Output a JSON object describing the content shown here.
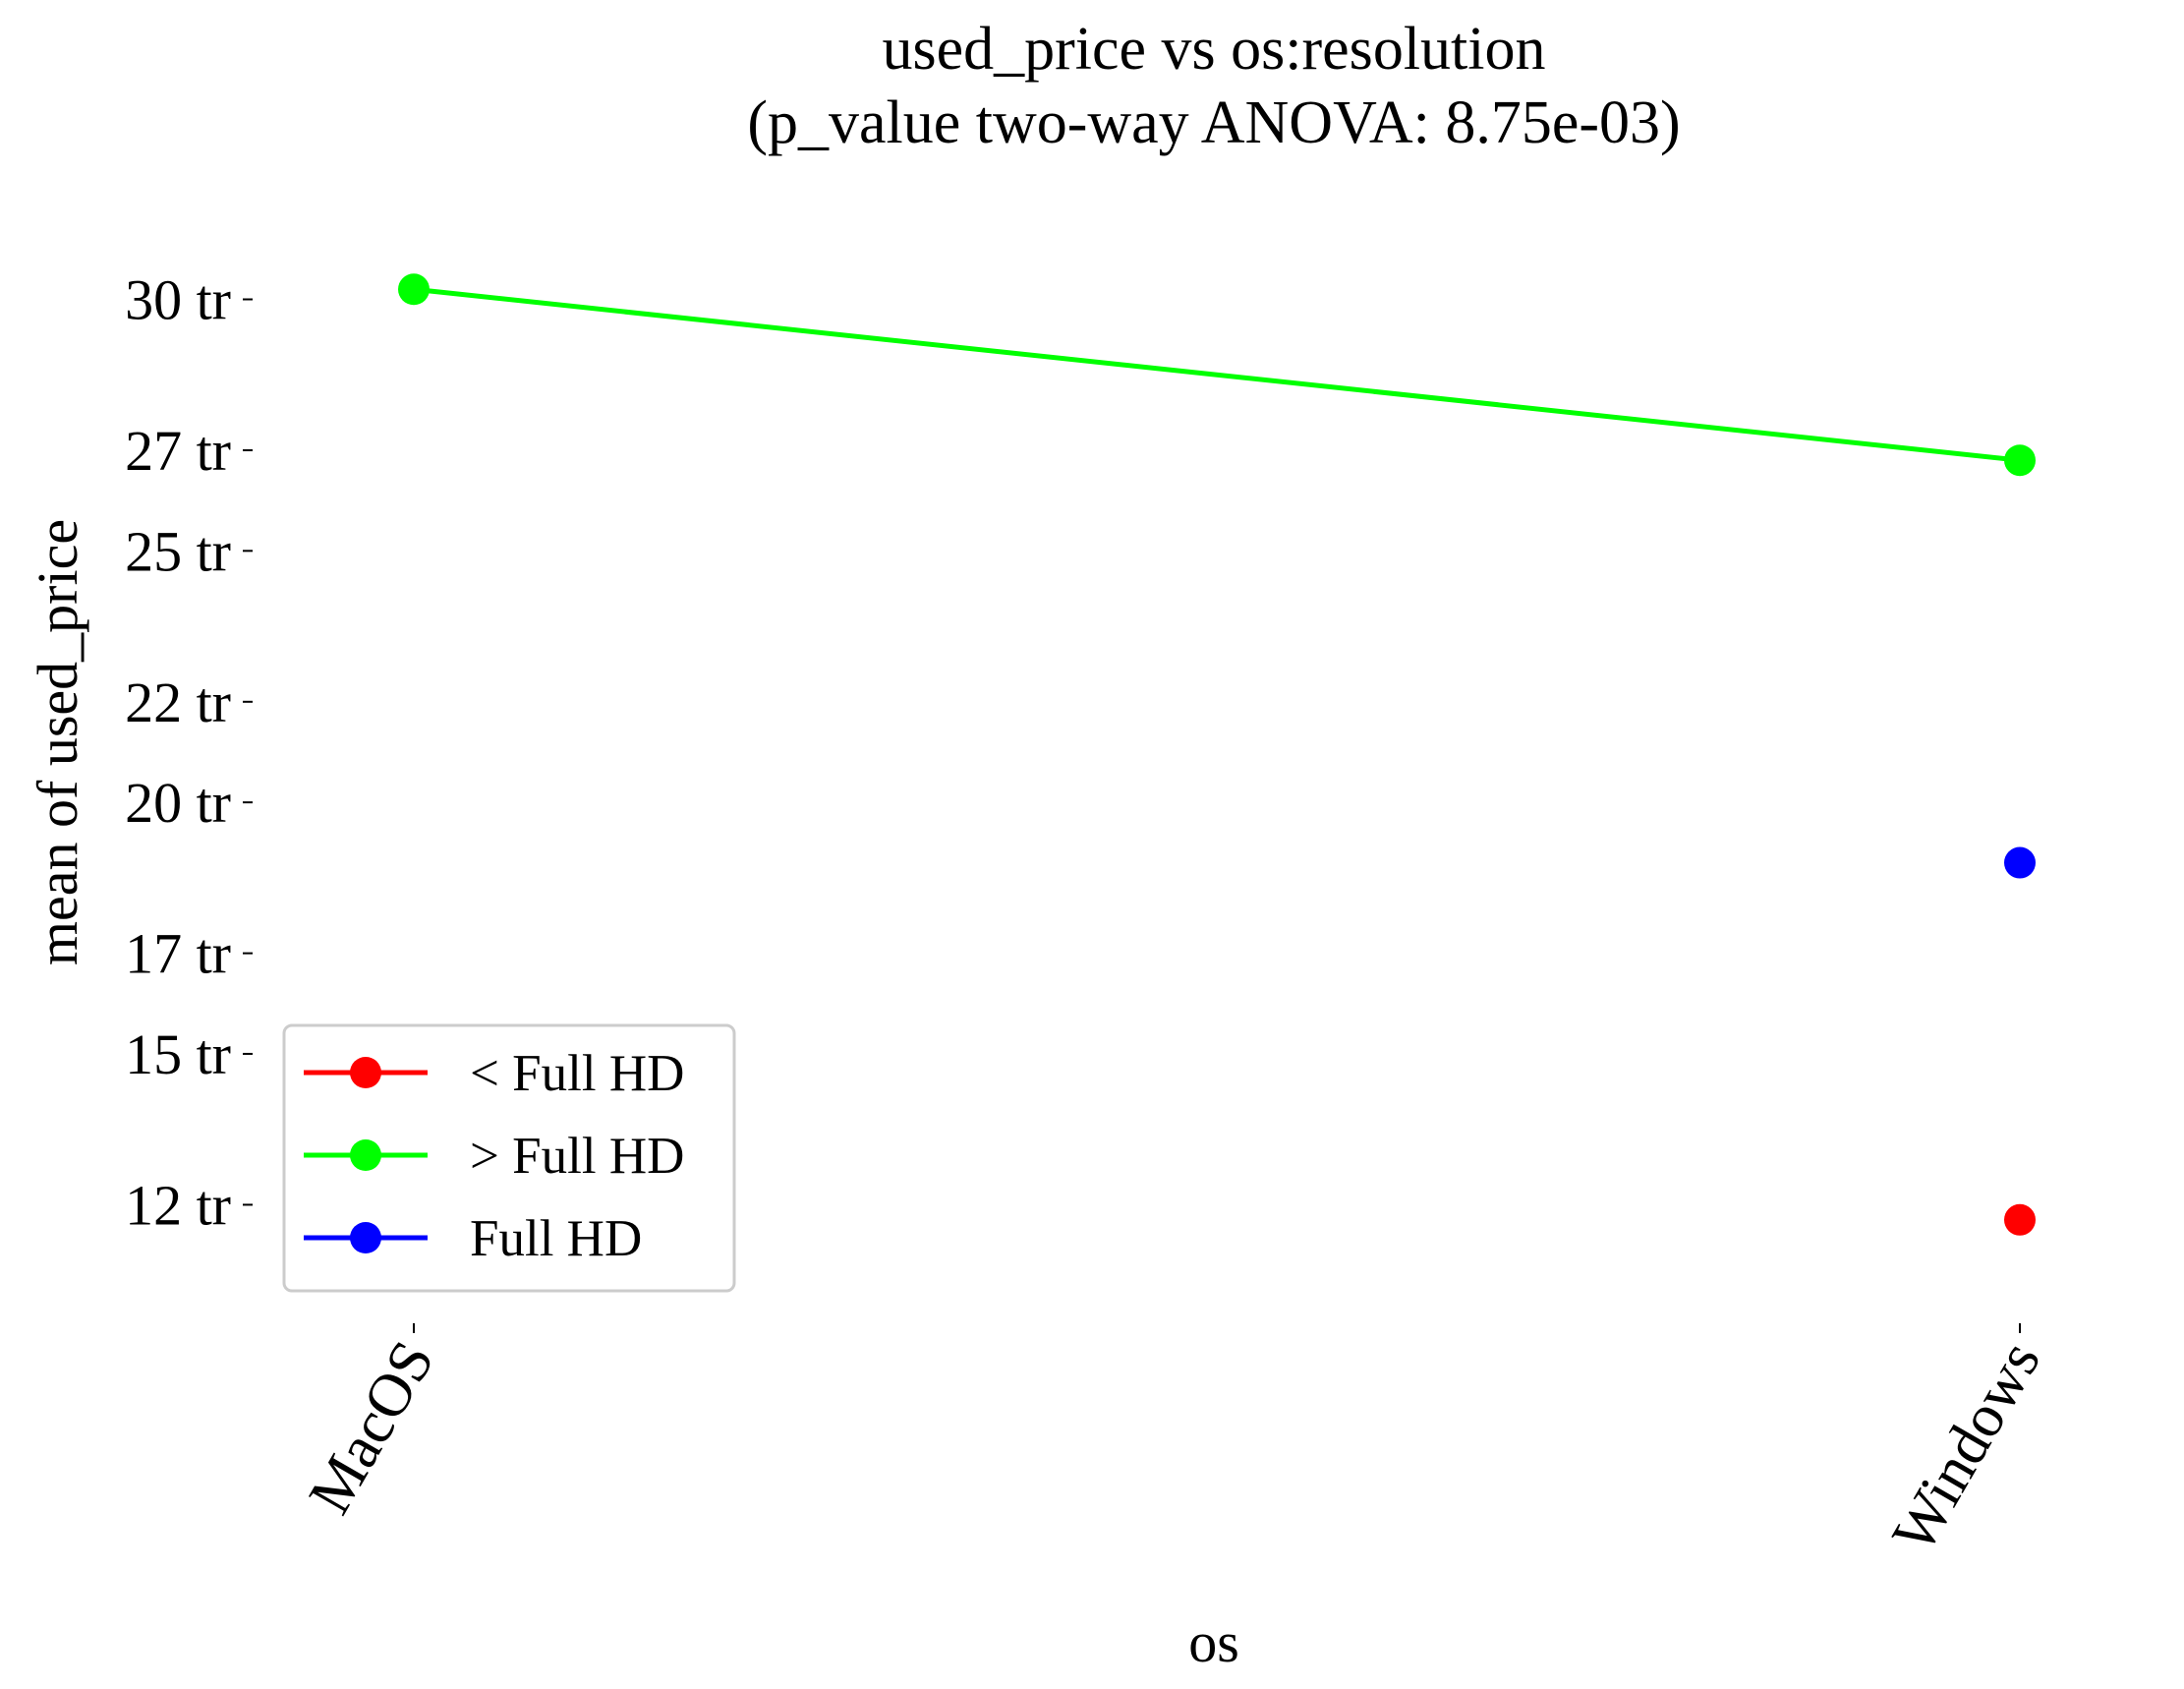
{
  "chart_data": {
    "type": "line",
    "title": "used_price vs os:resolution",
    "subtitle": "(p_value two-way ANOVA: 8.75e-03)",
    "xlabel": "os",
    "ylabel": "mean of used_price",
    "categories": [
      "MacOS",
      "Windows"
    ],
    "y_ticks": [
      {
        "value": 30000000,
        "label": "30 tr"
      },
      {
        "value": 27000000,
        "label": "27 tr"
      },
      {
        "value": 25000000,
        "label": "25 tr"
      },
      {
        "value": 22000000,
        "label": "22 tr"
      },
      {
        "value": 20000000,
        "label": "20 tr"
      },
      {
        "value": 17000000,
        "label": "17 tr"
      },
      {
        "value": 15000000,
        "label": "15 tr"
      },
      {
        "value": 12000000,
        "label": "12 tr"
      }
    ],
    "ylim": [
      9800000,
      31300000
    ],
    "grid": false,
    "legend_position": "bottom-left",
    "series": [
      {
        "name": "< Full HD",
        "color": "#ff0000",
        "values": [
          null,
          11700000
        ]
      },
      {
        "name": "> Full HD",
        "color": "#00ff00",
        "values": [
          30200000,
          26800000
        ]
      },
      {
        "name": "Full HD",
        "color": "#0000ff",
        "values": [
          null,
          18800000
        ]
      }
    ]
  }
}
